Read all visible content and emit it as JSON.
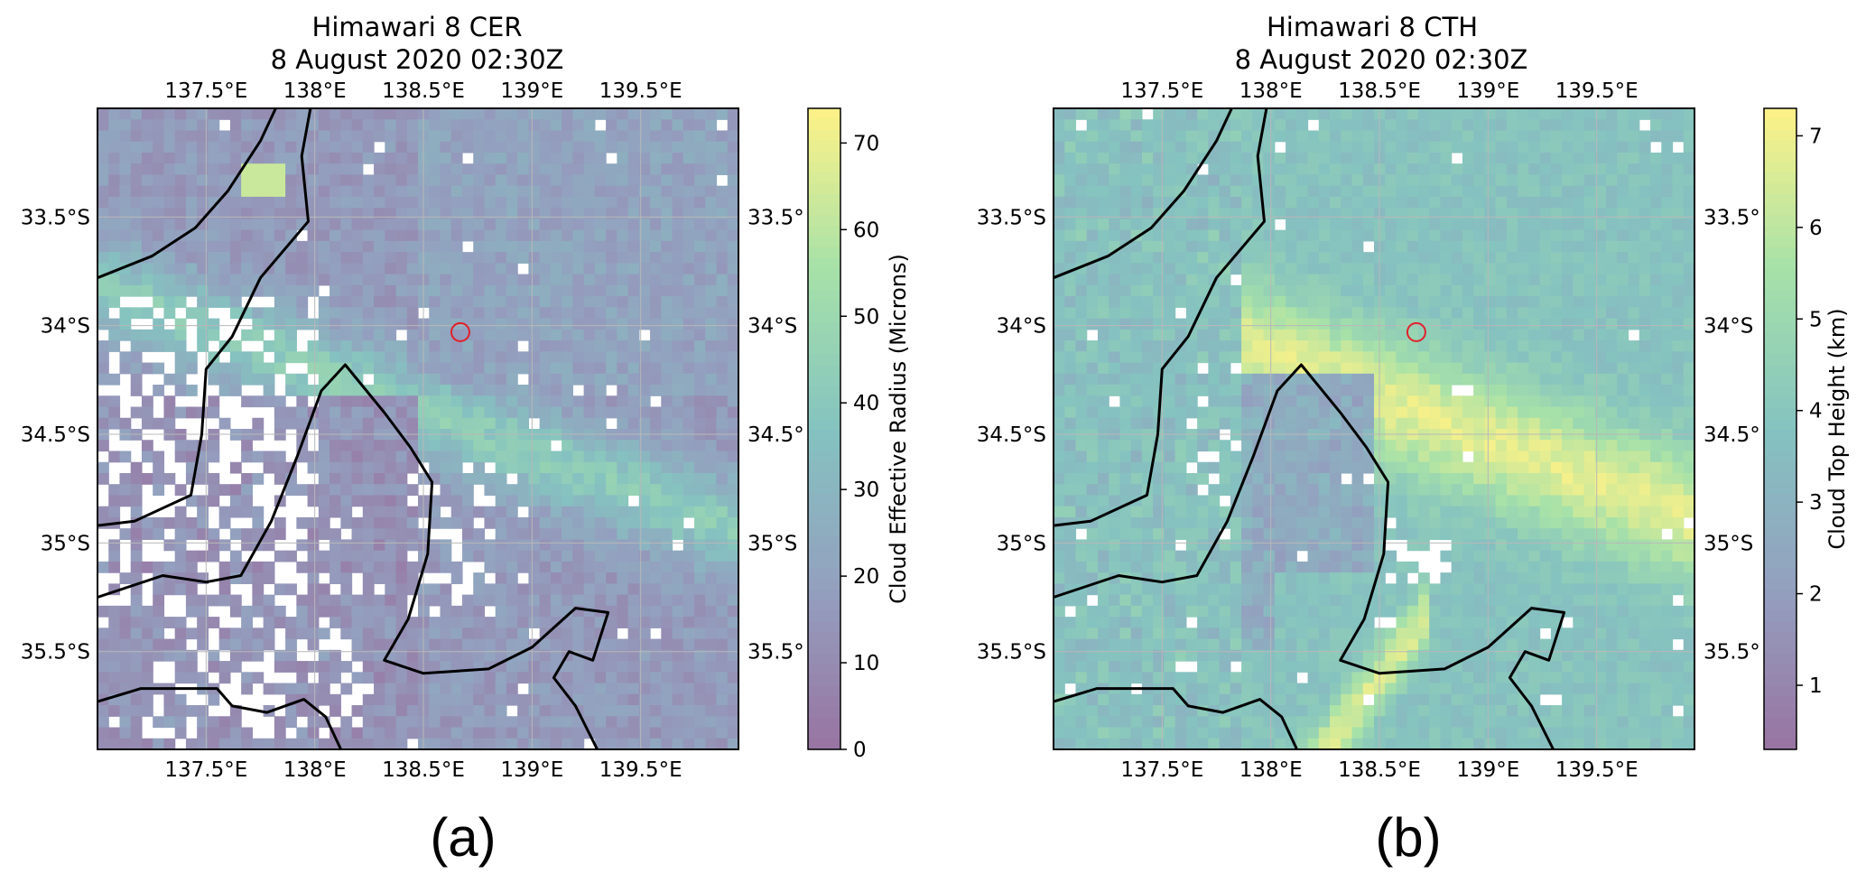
{
  "panels": [
    {
      "id": "a",
      "title_line1": "Himawari 8 CER",
      "title_line2": "8 August 2020 02:30Z",
      "panel_label": "(a)",
      "colorbar": {
        "label": "Cloud Effective Radius (Microns)",
        "min": 0,
        "max": 74,
        "ticks": [
          "0",
          "10",
          "20",
          "30",
          "40",
          "50",
          "60",
          "70"
        ],
        "tick_values": [
          0,
          10,
          20,
          30,
          40,
          50,
          60,
          70
        ]
      },
      "field_type": "cer",
      "color_alpha": 0.55
    },
    {
      "id": "b",
      "title_line1": "Himawari 8 CTH",
      "title_line2": "8 August 2020 02:30Z",
      "panel_label": "(b)",
      "colorbar": {
        "label": "Cloud Top Height (km)",
        "min": 0.3,
        "max": 7.3,
        "ticks": [
          "1",
          "2",
          "3",
          "4",
          "5",
          "6",
          "7"
        ],
        "tick_values": [
          1,
          2,
          3,
          4,
          5,
          6,
          7
        ]
      },
      "field_type": "cth",
      "color_alpha": 0.55
    }
  ],
  "map_extent": {
    "lon_min": 137.0,
    "lon_max": 139.95,
    "lat_min": -35.95,
    "lat_max": -33.0
  },
  "lon_ticks": [
    {
      "value": 137.5,
      "label": "137.5°E"
    },
    {
      "value": 138.0,
      "label": "138°E"
    },
    {
      "value": 138.5,
      "label": "138.5°E"
    },
    {
      "value": 139.0,
      "label": "139°E"
    },
    {
      "value": 139.5,
      "label": "139.5°E"
    }
  ],
  "lat_ticks_left": [
    {
      "value": -33.5,
      "label": "33.5°S"
    },
    {
      "value": -34.0,
      "label": "34°S"
    },
    {
      "value": -34.5,
      "label": "34.5°S"
    },
    {
      "value": -35.0,
      "label": "35°S"
    },
    {
      "value": -35.5,
      "label": "35.5°S"
    }
  ],
  "lat_ticks_right": [
    {
      "value": -33.5,
      "label": "33.5°"
    },
    {
      "value": -34.0,
      "label": "34°S"
    },
    {
      "value": -34.5,
      "label": "34.5°"
    },
    {
      "value": -35.0,
      "label": "35°S"
    },
    {
      "value": -35.5,
      "label": "35.5°"
    }
  ],
  "marker": {
    "lon": 138.67,
    "lat": -34.03,
    "color": "#e0202a"
  },
  "colors": {
    "viridis_stops": [
      "#440154",
      "#3b528b",
      "#21918c",
      "#5ec962",
      "#fde725"
    ],
    "grid": "#b8b8b8",
    "coastline": "#000000"
  },
  "chart_data": {
    "type": "heatmap",
    "panels": [
      {
        "title": "Himawari 8 CER 8 August 2020 02:30Z",
        "colorbar_label": "Cloud Effective Radius (Microns)",
        "range": [
          0,
          74
        ]
      },
      {
        "title": "Himawari 8 CTH 8 August 2020 02:30Z",
        "colorbar_label": "Cloud Top Height (km)",
        "range": [
          0.3,
          7.3
        ]
      }
    ],
    "lon_range": [
      137.0,
      139.95
    ],
    "lat_range": [
      -35.95,
      -33.0
    ],
    "grid": true
  }
}
